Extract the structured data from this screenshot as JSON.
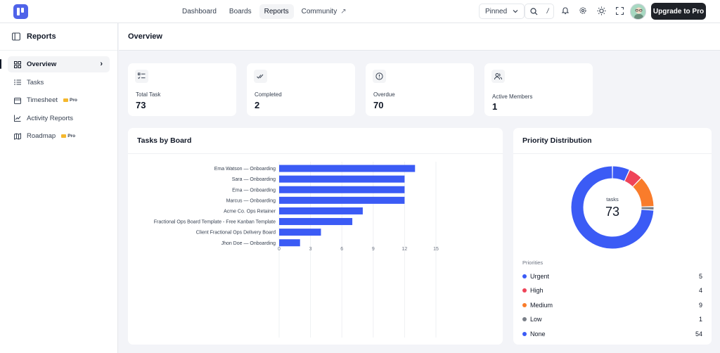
{
  "nav": {
    "items": [
      {
        "label": "Dashboard",
        "active": false
      },
      {
        "label": "Boards",
        "active": false
      },
      {
        "label": "Reports",
        "active": true
      },
      {
        "label": "Community",
        "active": false,
        "external": true
      }
    ],
    "pinned_label": "Pinned",
    "search_shortcut": "/",
    "upgrade_label": "Upgrade to Pro"
  },
  "sidebar": {
    "title": "Reports",
    "items": [
      {
        "label": "Overview",
        "icon": "grid-icon",
        "active": true
      },
      {
        "label": "Tasks",
        "icon": "list-icon"
      },
      {
        "label": "Timesheet",
        "icon": "calendar-icon",
        "badge": "Pro"
      },
      {
        "label": "Activity Reports",
        "icon": "trend-icon"
      },
      {
        "label": "Roadmap",
        "icon": "map-icon",
        "badge": "Pro"
      }
    ]
  },
  "main": {
    "title": "Overview",
    "stats": [
      {
        "label": "Total Task",
        "value": "73",
        "icon": "tasklist-icon"
      },
      {
        "label": "Completed",
        "value": "2",
        "icon": "check-icon"
      },
      {
        "label": "Overdue",
        "value": "70",
        "icon": "alert-icon"
      },
      {
        "label": "Active Members",
        "value": "1",
        "icon": "users-icon"
      }
    ]
  },
  "board_chart": {
    "title": "Tasks by Board"
  },
  "priority": {
    "title": "Priority Distribution",
    "center_label": "tasks",
    "center_value": "73",
    "legend_title": "Priorities",
    "items": [
      {
        "label": "Urgent",
        "count": "5",
        "color": "#3b5bf5"
      },
      {
        "label": "High",
        "count": "4",
        "color": "#ef4459"
      },
      {
        "label": "Medium",
        "count": "9",
        "color": "#f97c2b"
      },
      {
        "label": "Low",
        "count": "1",
        "color": "#7a7f88"
      },
      {
        "label": "None",
        "count": "54",
        "color": "#3b5bf5"
      }
    ]
  },
  "chart_data": [
    {
      "type": "bar",
      "orientation": "horizontal",
      "title": "Tasks by Board",
      "categories": [
        "Ema Watson — Onboarding",
        "Sara — Onboarding",
        "Ema — Onboarding",
        "Marcus — Onboarding",
        "Acme Co. Ops Retainer",
        "Fractional Ops Board Template - Free Kanban Template",
        "Client Fractional Ops Delivery Board",
        "Jhon Doe — Onboarding"
      ],
      "values": [
        13,
        12,
        12,
        12,
        8,
        7,
        4,
        2
      ],
      "xticks": [
        0,
        3,
        6,
        9,
        12,
        15
      ],
      "xlim": [
        0,
        15
      ],
      "color": "#3b5bf5",
      "grid": true
    },
    {
      "type": "pie",
      "donut": true,
      "title": "Priority Distribution",
      "categories": [
        "Urgent",
        "High",
        "Medium",
        "Low",
        "None"
      ],
      "values": [
        5,
        4,
        9,
        1,
        54
      ],
      "colors": [
        "#3b5bf5",
        "#ef4459",
        "#f97c2b",
        "#7a7f88",
        "#3b5bf5"
      ]
    }
  ]
}
